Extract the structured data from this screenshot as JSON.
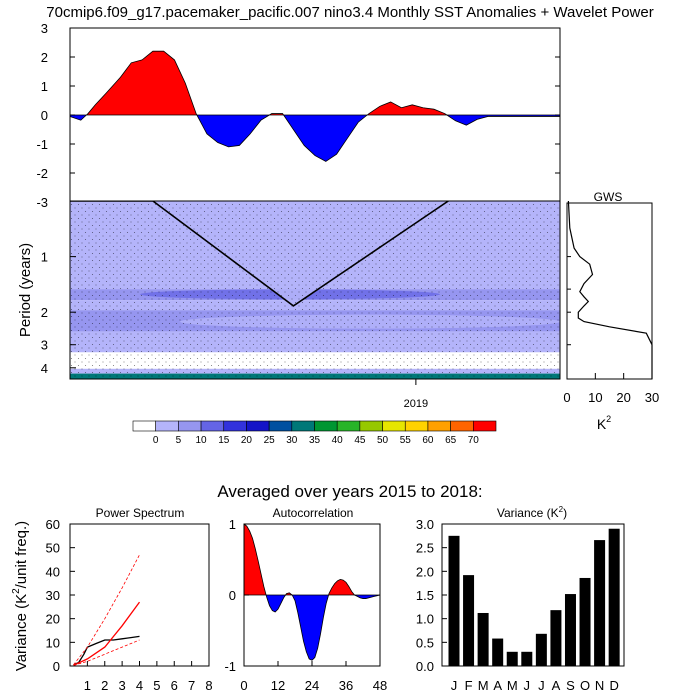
{
  "figure": {
    "title": "70cmip6.f09_g17.pacemaker_pacific.007 nino3.4 Monthly SST Anomalies + Wavelet Power",
    "averaged_label": "Averaged over years 2015 to 2018:"
  },
  "colors": {
    "positive": "#ff0000",
    "negative": "#0000ff",
    "wavelet_scale": [
      "#ffffff",
      "#b4b4fa",
      "#9696f0",
      "#6464e6",
      "#3232dc",
      "#1414c8",
      "#0050a0",
      "#007878",
      "#009632",
      "#28b428",
      "#96c800",
      "#e6e600",
      "#ffd200",
      "#ffa000",
      "#ff6400",
      "#ff0000"
    ]
  },
  "chart_data": [
    {
      "id": "sst_anomalies",
      "type": "area",
      "title": "",
      "ylim": [
        -3,
        3
      ],
      "yticks": [
        "3",
        "2",
        "1",
        "0",
        "-1",
        "-2",
        "-3"
      ],
      "ytick_values": [
        3,
        2,
        1,
        0,
        -1,
        -2,
        -3
      ],
      "xlim": [
        2014.2,
        2021.0
      ],
      "x": [
        2014.2,
        2014.35,
        2014.45,
        2014.55,
        2014.7,
        2014.9,
        2015.05,
        2015.2,
        2015.35,
        2015.5,
        2015.65,
        2015.8,
        2015.95,
        2016.1,
        2016.25,
        2016.4,
        2016.55,
        2016.7,
        2016.85,
        2017.0,
        2017.15,
        2017.3,
        2017.45,
        2017.6,
        2017.75,
        2017.9,
        2018.05,
        2018.2,
        2018.35,
        2018.5,
        2018.65,
        2018.8,
        2018.95,
        2019.1,
        2019.25,
        2019.4,
        2019.55,
        2019.7,
        2019.85,
        2020.0,
        2020.15,
        2020.3,
        2020.45,
        2020.6,
        2020.75,
        2020.85,
        2021.0
      ],
      "values": [
        -0.05,
        -0.18,
        0.05,
        0.35,
        0.75,
        1.3,
        1.8,
        1.9,
        2.2,
        2.2,
        1.9,
        1.1,
        0.05,
        -0.65,
        -0.95,
        -1.1,
        -1.05,
        -0.65,
        -0.18,
        0.05,
        0.05,
        -0.5,
        -1.05,
        -1.4,
        -1.6,
        -1.35,
        -0.8,
        -0.25,
        0.05,
        0.3,
        0.45,
        0.25,
        0.35,
        0.25,
        0.2,
        0.05,
        -0.2,
        -0.35,
        -0.15,
        -0.05,
        -0.05,
        -0.05,
        -0.05,
        -0.05,
        -0.05,
        -0.05,
        -0.05
      ]
    },
    {
      "id": "wavelet_power",
      "type": "heatmap",
      "ylabel": "Period (years)",
      "yticks": [
        "1",
        "2",
        "3",
        "4"
      ],
      "ytick_values": [
        1,
        2,
        3,
        4
      ],
      "ylim_years": [
        0.5,
        4.6
      ],
      "xticks": [
        "2019"
      ],
      "xtick_values": [
        2019
      ],
      "bands": [
        {
          "from": 0.5,
          "to": 1.5,
          "level": 5
        },
        {
          "from": 1.5,
          "to": 1.72,
          "level": 10
        },
        {
          "from": 1.72,
          "to": 1.95,
          "level": 5
        },
        {
          "from": 1.95,
          "to": 2.55,
          "level": 10
        },
        {
          "from": 2.55,
          "to": 3.3,
          "level": 5
        },
        {
          "from": 3.3,
          "to": 4.05,
          "level": 0
        },
        {
          "from": 4.05,
          "to": 4.3,
          "level": 5
        },
        {
          "from": 4.3,
          "to": 4.6,
          "level": 35
        }
      ],
      "cone_of_influence": {
        "x": [
          2014.2,
          2015.35,
          2017.3,
          2019.45
        ],
        "period": [
          0.5,
          0.5,
          1.85,
          0.5
        ]
      }
    },
    {
      "id": "global_wavelet_spectrum",
      "type": "line",
      "title": "GWS",
      "xlabel": "K",
      "xticks": [
        "0",
        "10",
        "20",
        "30"
      ],
      "xtick_values": [
        0,
        10,
        20,
        30
      ],
      "xlim": [
        0,
        30
      ],
      "period": [
        0.5,
        0.7,
        0.9,
        1.0,
        1.1,
        1.25,
        1.4,
        1.55,
        1.65,
        1.75,
        1.85,
        2.0,
        2.15,
        2.25,
        2.4,
        2.6,
        3.0,
        3.5,
        4.0,
        4.6
      ],
      "power": [
        0.5,
        1.0,
        2.5,
        4.5,
        8.0,
        9.0,
        6.0,
        4.5,
        6.0,
        7.5,
        6.0,
        4.0,
        4.0,
        6.0,
        15.0,
        28.0,
        30.0,
        30.0,
        30.0,
        30.0
      ]
    },
    {
      "id": "power_spectrum",
      "type": "line",
      "title": "Power Spectrum",
      "ylabel": "Variance (K",
      "ylabel_sup": "2",
      "ylabel_tail": "/unit freq.)",
      "ylim": [
        0,
        60
      ],
      "xlim": [
        0,
        8
      ],
      "yticks": [
        "0",
        "10",
        "20",
        "30",
        "40",
        "50",
        "60"
      ],
      "ytick_values": [
        0,
        10,
        20,
        30,
        40,
        50,
        60
      ],
      "xticks": [
        "1",
        "2",
        "3",
        "4",
        "5",
        "6",
        "7",
        "8"
      ],
      "xtick_values": [
        1,
        2,
        3,
        4,
        5,
        6,
        7,
        8
      ],
      "series": [
        {
          "color": "#000000",
          "dashed": false,
          "x": [
            0.2,
            0.5,
            0.8,
            1.0,
            1.5,
            2.0,
            2.5,
            3.0,
            3.5,
            4.0
          ],
          "y": [
            0.5,
            1.5,
            5,
            8,
            9.5,
            11,
            11,
            11.5,
            12,
            12.5
          ]
        },
        {
          "color": "#ff0000",
          "dashed": false,
          "x": [
            0.2,
            1.0,
            2.0,
            3.0,
            4.0
          ],
          "y": [
            0.3,
            3,
            8,
            17,
            27
          ]
        },
        {
          "color": "#ff0000",
          "dashed": true,
          "x": [
            0.2,
            1.0,
            2.0,
            3.0,
            4.0
          ],
          "y": [
            0.5,
            8,
            20,
            33,
            47
          ]
        },
        {
          "color": "#ff0000",
          "dashed": true,
          "x": [
            0.2,
            1.0,
            2.0,
            3.0,
            4.0
          ],
          "y": [
            0.2,
            2,
            5,
            8,
            11
          ]
        }
      ]
    },
    {
      "id": "autocorrelation",
      "type": "area",
      "title": "Autocorrelation",
      "ylim": [
        -1,
        1
      ],
      "xlim": [
        0,
        48
      ],
      "yticks": [
        "1",
        "0",
        "-1"
      ],
      "ytick_values": [
        1,
        0,
        -1
      ],
      "xticks": [
        "0",
        "12",
        "24",
        "36",
        "48"
      ],
      "xtick_values": [
        0,
        12,
        24,
        36,
        48
      ],
      "x": [
        0,
        1,
        2,
        3,
        4,
        5,
        6,
        7,
        8,
        9,
        10,
        11,
        12,
        13,
        14,
        15,
        16,
        17,
        18,
        19,
        20,
        21,
        22,
        23,
        24,
        25,
        26,
        27,
        28,
        29,
        30,
        31,
        32,
        33,
        34,
        35,
        36,
        37,
        38,
        39,
        40,
        41,
        42,
        43,
        44,
        45,
        46,
        47,
        48
      ],
      "values": [
        1.0,
        0.97,
        0.9,
        0.8,
        0.65,
        0.48,
        0.3,
        0.12,
        -0.03,
        -0.15,
        -0.22,
        -0.24,
        -0.2,
        -0.12,
        -0.04,
        0.02,
        0.03,
        0.0,
        -0.08,
        -0.25,
        -0.45,
        -0.65,
        -0.8,
        -0.9,
        -0.92,
        -0.88,
        -0.75,
        -0.55,
        -0.32,
        -0.12,
        0.02,
        0.1,
        0.16,
        0.2,
        0.22,
        0.21,
        0.18,
        0.12,
        0.05,
        0.0,
        -0.02,
        -0.04,
        -0.05,
        -0.05,
        -0.04,
        -0.03,
        -0.02,
        -0.01,
        0.0
      ]
    },
    {
      "id": "monthly_variance",
      "type": "bar",
      "title": "Variance (K",
      "title_sup": "2",
      "title_tail": ")",
      "ylim": [
        0,
        3
      ],
      "yticks": [
        "3.0",
        "2.5",
        "2.0",
        "1.5",
        "1.0",
        "0.5",
        "0.0"
      ],
      "ytick_values": [
        3.0,
        2.5,
        2.0,
        1.5,
        1.0,
        0.5,
        0.0
      ],
      "categories": [
        "J",
        "F",
        "M",
        "A",
        "M",
        "J",
        "J",
        "A",
        "S",
        "O",
        "N",
        "D"
      ],
      "values": [
        2.75,
        1.92,
        1.12,
        0.58,
        0.3,
        0.3,
        0.68,
        1.18,
        1.52,
        1.86,
        2.66,
        2.9
      ]
    }
  ],
  "colorbar": {
    "labels": [
      "0",
      "5",
      "10",
      "15",
      "20",
      "25",
      "30",
      "35",
      "40",
      "45",
      "50",
      "55",
      "60",
      "65",
      "70"
    ]
  }
}
